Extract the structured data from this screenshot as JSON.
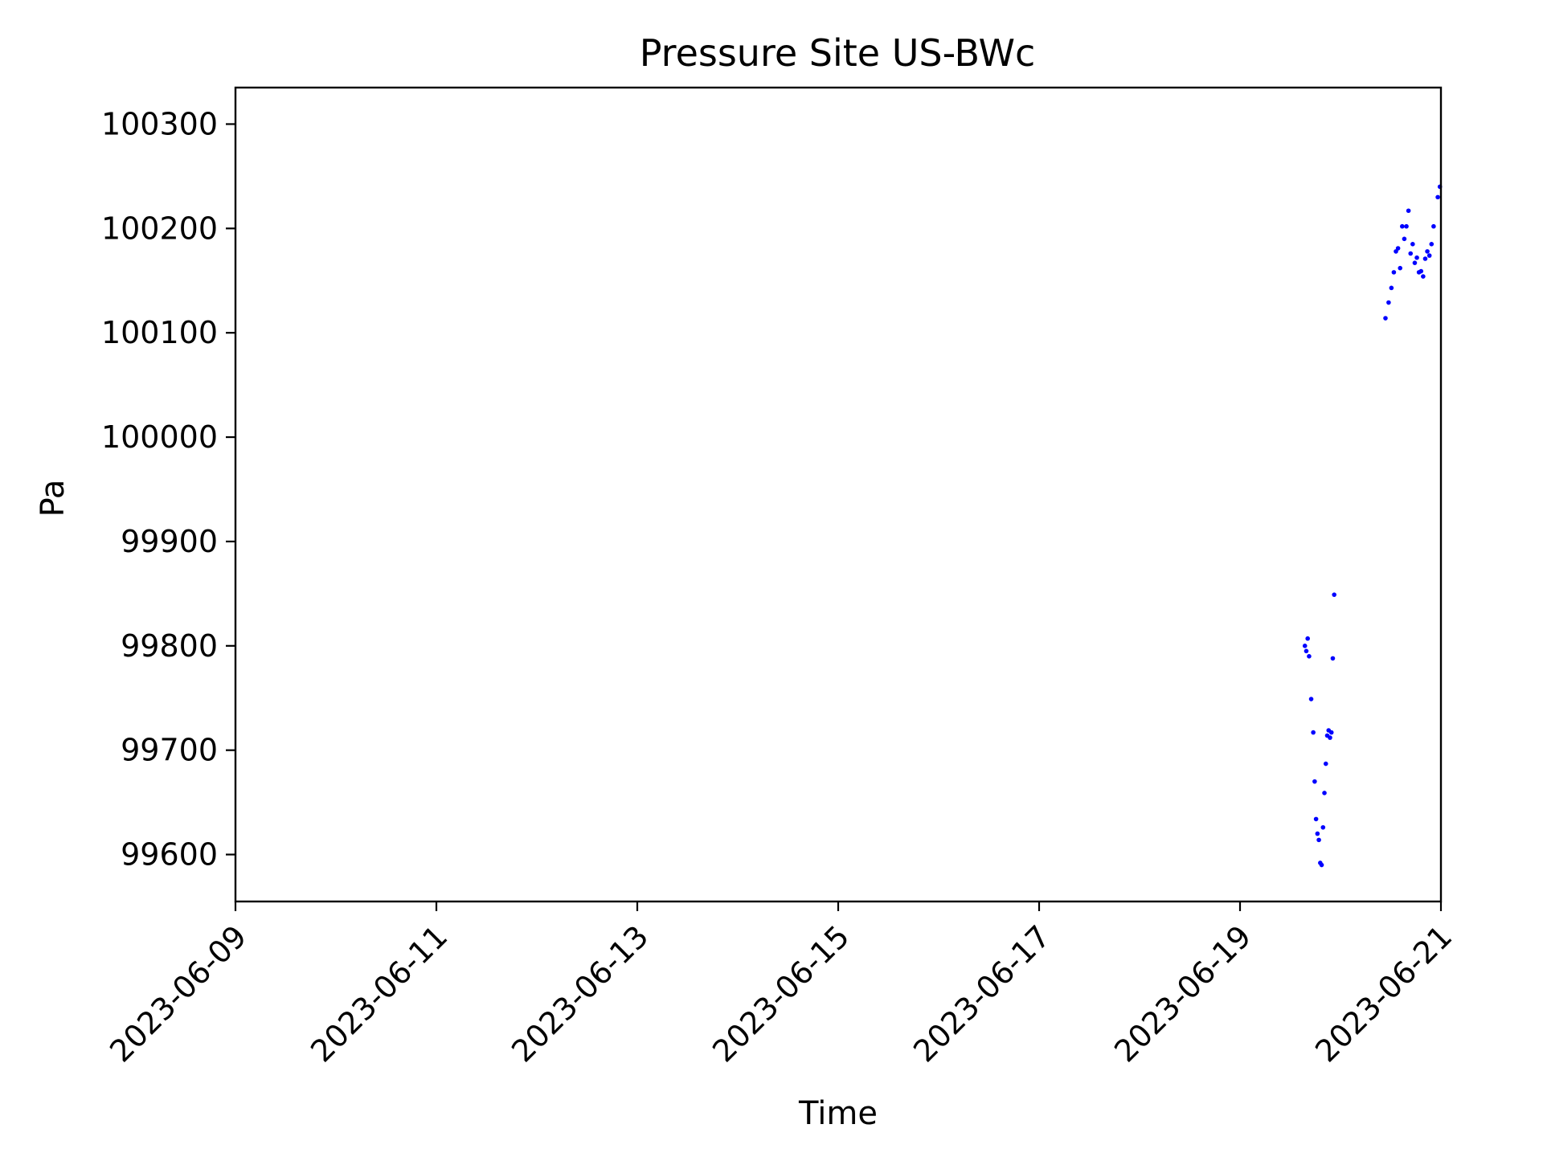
{
  "chart_data": {
    "type": "scatter",
    "title": "Pressure Site US-BWc",
    "xlabel": "Time",
    "ylabel": "Pa",
    "x_tick_labels": [
      "2023-06-09",
      "2023-06-11",
      "2023-06-13",
      "2023-06-15",
      "2023-06-17",
      "2023-06-19",
      "2023-06-21"
    ],
    "y_tick_labels": [
      "99600",
      "99700",
      "99800",
      "99900",
      "100000",
      "100100",
      "100200",
      "100300"
    ],
    "xlim": [
      "2023-06-09T00:00",
      "2023-06-21T00:00"
    ],
    "ylim": [
      99555,
      100335
    ],
    "grid": false,
    "marker_color": "#0000ff",
    "series": [
      {
        "points": [
          [
            "2023-06-19T15:30",
            99800
          ],
          [
            "2023-06-19T15:50",
            99795
          ],
          [
            "2023-06-19T16:10",
            99807
          ],
          [
            "2023-06-19T16:30",
            99790
          ],
          [
            "2023-06-19T17:00",
            99749
          ],
          [
            "2023-06-19T17:30",
            99717
          ],
          [
            "2023-06-19T17:50",
            99670
          ],
          [
            "2023-06-19T18:10",
            99634
          ],
          [
            "2023-06-19T18:30",
            99620
          ],
          [
            "2023-06-19T18:50",
            99614
          ],
          [
            "2023-06-19T19:10",
            99592
          ],
          [
            "2023-06-19T19:30",
            99590
          ],
          [
            "2023-06-19T19:50",
            99626
          ],
          [
            "2023-06-19T20:10",
            99659
          ],
          [
            "2023-06-19T20:30",
            99687
          ],
          [
            "2023-06-19T20:50",
            99714
          ],
          [
            "2023-06-19T21:10",
            99719
          ],
          [
            "2023-06-19T21:30",
            99712
          ],
          [
            "2023-06-19T21:50",
            99717
          ],
          [
            "2023-06-19T22:10",
            99788
          ],
          [
            "2023-06-19T22:30",
            99849
          ],
          [
            "2023-06-20T10:45",
            100114
          ],
          [
            "2023-06-20T11:30",
            100129
          ],
          [
            "2023-06-20T12:10",
            100143
          ],
          [
            "2023-06-20T12:45",
            100158
          ],
          [
            "2023-06-20T13:15",
            100178
          ],
          [
            "2023-06-20T13:45",
            100181
          ],
          [
            "2023-06-20T14:15",
            100162
          ],
          [
            "2023-06-20T14:45",
            100202
          ],
          [
            "2023-06-20T15:15",
            100190
          ],
          [
            "2023-06-20T15:45",
            100202
          ],
          [
            "2023-06-20T16:15",
            100217
          ],
          [
            "2023-06-20T16:45",
            100176
          ],
          [
            "2023-06-20T17:15",
            100185
          ],
          [
            "2023-06-20T17:45",
            100167
          ],
          [
            "2023-06-20T18:15",
            100172
          ],
          [
            "2023-06-20T18:45",
            100158
          ],
          [
            "2023-06-20T19:15",
            100159
          ],
          [
            "2023-06-20T19:45",
            100154
          ],
          [
            "2023-06-20T20:15",
            100171
          ],
          [
            "2023-06-20T20:45",
            100178
          ],
          [
            "2023-06-20T21:15",
            100174
          ],
          [
            "2023-06-20T21:45",
            100185
          ],
          [
            "2023-06-20T22:15",
            100202
          ],
          [
            "2023-06-20T23:15",
            100230
          ],
          [
            "2023-06-20T23:45",
            100240
          ]
        ]
      }
    ]
  }
}
